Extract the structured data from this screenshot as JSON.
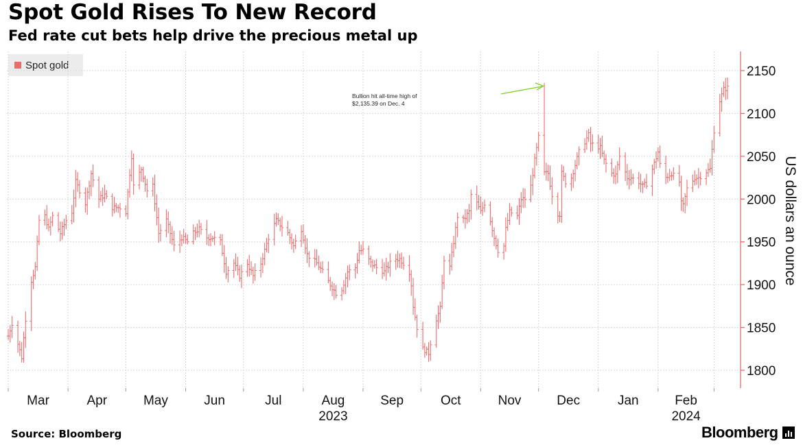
{
  "header": {
    "title": "Spot Gold Rises To New Record",
    "subtitle": "Fed rate cut bets help drive the precious metal up"
  },
  "legend": {
    "label": "Spot gold",
    "color": "#ef6b6b"
  },
  "footer": {
    "source": "Source: Bloomberg",
    "brand": "Bloomberg"
  },
  "annotation": {
    "line1": "Bullion hit all-time high of",
    "line2": "$2,135.39 on Dec. 4",
    "arrow_color": "#7ed321"
  },
  "chart_data": {
    "type": "ohlc",
    "title": "Spot Gold Rises To New Record",
    "subtitle": "Fed rate cut bets help drive the precious metal up",
    "ylabel": "US dollars an ounce",
    "ylim": [
      1780,
      2165
    ],
    "yticks": [
      1800,
      1850,
      1900,
      1950,
      2000,
      2050,
      2100,
      2150
    ],
    "y_axis_side": "right",
    "grid": true,
    "month_labels": [
      "Mar",
      "Apr",
      "May",
      "Jun",
      "Jul",
      "Aug",
      "Sep",
      "Oct",
      "Nov",
      "Dec",
      "Jan",
      "Feb"
    ],
    "year_labels": [
      {
        "label": "2023",
        "month": "Aug"
      },
      {
        "label": "2024",
        "month": "Feb"
      }
    ],
    "series_color": "#ef6b6b",
    "x_range": [
      "2023-03-01",
      "2024-03-08"
    ],
    "month_boundaries": [
      "2023-03-01",
      "2023-04-01",
      "2023-05-01",
      "2023-06-01",
      "2023-07-01",
      "2023-08-01",
      "2023-09-01",
      "2023-10-01",
      "2023-11-01",
      "2023-12-01",
      "2024-01-01",
      "2024-02-01",
      "2024-03-01"
    ],
    "anchors": [
      [
        "2023-03-01",
        1840
      ],
      [
        "2023-03-03",
        1855
      ],
      [
        "2023-03-08",
        1815
      ],
      [
        "2023-03-10",
        1860
      ],
      [
        "2023-03-13",
        1905
      ],
      [
        "2023-03-15",
        1920
      ],
      [
        "2023-03-17",
        1975
      ],
      [
        "2023-03-20",
        1980
      ],
      [
        "2023-03-22",
        1965
      ],
      [
        "2023-03-24",
        1980
      ],
      [
        "2023-03-28",
        1960
      ],
      [
        "2023-03-31",
        1975
      ],
      [
        "2023-04-03",
        1985
      ],
      [
        "2023-04-05",
        2020
      ],
      [
        "2023-04-10",
        1995
      ],
      [
        "2023-04-13",
        2030
      ],
      [
        "2023-04-17",
        2000
      ],
      [
        "2023-04-20",
        2005
      ],
      [
        "2023-04-24",
        1990
      ],
      [
        "2023-04-28",
        1990
      ],
      [
        "2023-05-01",
        1985
      ],
      [
        "2023-05-03",
        2030
      ],
      [
        "2023-05-04",
        2050
      ],
      [
        "2023-05-05",
        2015
      ],
      [
        "2023-05-09",
        2035
      ],
      [
        "2023-05-12",
        2010
      ],
      [
        "2023-05-15",
        2015
      ],
      [
        "2023-05-18",
        1960
      ],
      [
        "2023-05-22",
        1975
      ],
      [
        "2023-05-24",
        1960
      ],
      [
        "2023-05-26",
        1945
      ],
      [
        "2023-05-30",
        1955
      ],
      [
        "2023-06-02",
        1950
      ],
      [
        "2023-06-05",
        1960
      ],
      [
        "2023-06-08",
        1965
      ],
      [
        "2023-06-12",
        1955
      ],
      [
        "2023-06-15",
        1955
      ],
      [
        "2023-06-19",
        1950
      ],
      [
        "2023-06-22",
        1915
      ],
      [
        "2023-06-26",
        1925
      ],
      [
        "2023-06-29",
        1910
      ],
      [
        "2023-07-03",
        1925
      ],
      [
        "2023-07-06",
        1910
      ],
      [
        "2023-07-10",
        1925
      ],
      [
        "2023-07-14",
        1955
      ],
      [
        "2023-07-18",
        1975
      ],
      [
        "2023-07-20",
        1970
      ],
      [
        "2023-07-24",
        1960
      ],
      [
        "2023-07-27",
        1945
      ],
      [
        "2023-07-31",
        1965
      ],
      [
        "2023-08-03",
        1935
      ],
      [
        "2023-08-08",
        1925
      ],
      [
        "2023-08-11",
        1915
      ],
      [
        "2023-08-15",
        1900
      ],
      [
        "2023-08-18",
        1890
      ],
      [
        "2023-08-21",
        1895
      ],
      [
        "2023-08-24",
        1915
      ],
      [
        "2023-08-28",
        1920
      ],
      [
        "2023-08-30",
        1940
      ],
      [
        "2023-09-01",
        1940
      ],
      [
        "2023-09-05",
        1925
      ],
      [
        "2023-09-08",
        1920
      ],
      [
        "2023-09-12",
        1915
      ],
      [
        "2023-09-15",
        1925
      ],
      [
        "2023-09-18",
        1930
      ],
      [
        "2023-09-20",
        1930
      ],
      [
        "2023-09-22",
        1925
      ],
      [
        "2023-09-25",
        1915
      ],
      [
        "2023-09-26",
        1900
      ],
      [
        "2023-09-27",
        1875
      ],
      [
        "2023-09-29",
        1850
      ],
      [
        "2023-10-02",
        1825
      ],
      [
        "2023-10-05",
        1820
      ],
      [
        "2023-10-06",
        1832
      ],
      [
        "2023-10-09",
        1860
      ],
      [
        "2023-10-11",
        1872
      ],
      [
        "2023-10-13",
        1930
      ],
      [
        "2023-10-16",
        1920
      ],
      [
        "2023-10-18",
        1950
      ],
      [
        "2023-10-20",
        1980
      ],
      [
        "2023-10-23",
        1975
      ],
      [
        "2023-10-26",
        1985
      ],
      [
        "2023-10-27",
        2005
      ],
      [
        "2023-10-30",
        1995
      ],
      [
        "2023-11-01",
        1985
      ],
      [
        "2023-11-03",
        1995
      ],
      [
        "2023-11-06",
        1975
      ],
      [
        "2023-11-08",
        1955
      ],
      [
        "2023-11-10",
        1940
      ],
      [
        "2023-11-13",
        1945
      ],
      [
        "2023-11-14",
        1965
      ],
      [
        "2023-11-16",
        1985
      ],
      [
        "2023-11-20",
        1980
      ],
      [
        "2023-11-22",
        2000
      ],
      [
        "2023-11-24",
        2000
      ],
      [
        "2023-11-27",
        2015
      ],
      [
        "2023-11-29",
        2045
      ],
      [
        "2023-12-01",
        2072
      ],
      [
        "2023-12-04",
        2030
      ],
      [
        "2023-12-06",
        2030
      ],
      [
        "2023-12-08",
        2005
      ],
      [
        "2023-12-11",
        1983
      ],
      [
        "2023-12-12",
        1982
      ],
      [
        "2023-12-13",
        2030
      ],
      [
        "2023-12-15",
        2020
      ],
      [
        "2023-12-18",
        2025
      ],
      [
        "2023-12-20",
        2040
      ],
      [
        "2023-12-22",
        2055
      ],
      [
        "2023-12-27",
        2075
      ],
      [
        "2023-12-28",
        2065
      ],
      [
        "2024-01-02",
        2060
      ],
      [
        "2024-01-04",
        2045
      ],
      [
        "2024-01-08",
        2030
      ],
      [
        "2024-01-10",
        2028
      ],
      [
        "2024-01-12",
        2050
      ],
      [
        "2024-01-16",
        2025
      ],
      [
        "2024-01-18",
        2025
      ],
      [
        "2024-01-22",
        2020
      ],
      [
        "2024-01-24",
        2015
      ],
      [
        "2024-01-26",
        2018
      ],
      [
        "2024-01-29",
        2035
      ],
      [
        "2024-02-01",
        2055
      ],
      [
        "2024-02-02",
        2040
      ],
      [
        "2024-02-05",
        2025
      ],
      [
        "2024-02-08",
        2030
      ],
      [
        "2024-02-12",
        2020
      ],
      [
        "2024-02-13",
        1995
      ],
      [
        "2024-02-14",
        1992
      ],
      [
        "2024-02-16",
        2012
      ],
      [
        "2024-02-20",
        2025
      ],
      [
        "2024-02-22",
        2025
      ],
      [
        "2024-02-26",
        2032
      ],
      [
        "2024-02-28",
        2035
      ],
      [
        "2024-03-01",
        2080
      ],
      [
        "2024-03-04",
        2115
      ],
      [
        "2024-03-06",
        2128
      ],
      [
        "2024-03-08",
        2130
      ]
    ],
    "spikes": [
      {
        "date": "2023-12-04",
        "high": 2135.39,
        "note": "Bullion hit all-time high of $2,135.39 on Dec. 4"
      },
      {
        "date": "2024-03-08",
        "high": 2142
      }
    ]
  }
}
